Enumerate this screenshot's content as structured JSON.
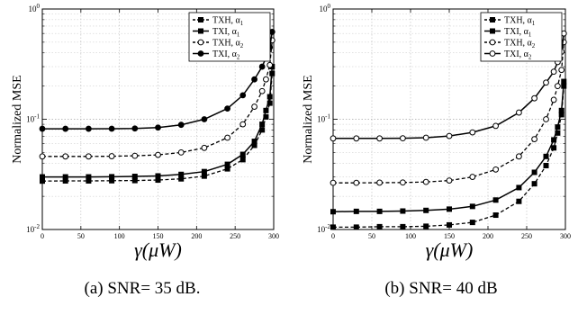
{
  "chart_data": [
    {
      "type": "line",
      "panel_id": "a",
      "caption": "(a) SNR= 35 dB.",
      "xlabel": "γ(μW)",
      "ylabel": "Normalized MSE",
      "y_scale": "log",
      "xlim": [
        0,
        300
      ],
      "ylim": [
        0.01,
        1
      ],
      "x_ticks": [
        "0",
        "50",
        "100",
        "150",
        "200",
        "250",
        "300"
      ],
      "y_ticks": [
        "10-2",
        "10-1",
        "100"
      ],
      "grid": true,
      "legend_position": "top-right",
      "x": [
        0,
        30,
        60,
        90,
        120,
        150,
        180,
        210,
        240,
        260,
        275,
        285,
        290,
        295,
        298
      ],
      "series": [
        {
          "name": "TXH, α1",
          "line_style": "dashed",
          "marker": "square-filled",
          "values": [
            0.0275,
            0.0276,
            0.0276,
            0.0277,
            0.0278,
            0.0281,
            0.0288,
            0.0305,
            0.0355,
            0.043,
            0.058,
            0.08,
            0.105,
            0.14,
            0.26
          ]
        },
        {
          "name": "TXI, α1",
          "line_style": "solid",
          "marker": "square-filled",
          "values": [
            0.03,
            0.03,
            0.03,
            0.0301,
            0.0303,
            0.0306,
            0.0316,
            0.0335,
            0.039,
            0.048,
            0.063,
            0.09,
            0.12,
            0.16,
            0.3
          ]
        },
        {
          "name": "TXH, α2",
          "line_style": "dashed",
          "marker": "circle-open",
          "values": [
            0.046,
            0.046,
            0.046,
            0.0462,
            0.0466,
            0.0475,
            0.05,
            0.055,
            0.068,
            0.09,
            0.13,
            0.18,
            0.23,
            0.31,
            0.52
          ]
        },
        {
          "name": "TXI, α2",
          "line_style": "solid",
          "marker": "circle-filled",
          "values": [
            0.082,
            0.082,
            0.082,
            0.0821,
            0.0825,
            0.084,
            0.089,
            0.1,
            0.125,
            0.165,
            0.23,
            0.3,
            0.36,
            0.45,
            0.62
          ]
        }
      ]
    },
    {
      "type": "line",
      "panel_id": "b",
      "caption": "(b) SNR= 40 dB",
      "xlabel": "γ(μW)",
      "ylabel": "Normalized MSE",
      "y_scale": "log",
      "xlim": [
        0,
        300
      ],
      "ylim": [
        0.01,
        1
      ],
      "x_ticks": [
        "0",
        "50",
        "100",
        "150",
        "200",
        "250",
        "300"
      ],
      "y_ticks": [
        "10-2",
        "10-1",
        "100"
      ],
      "grid": true,
      "legend_position": "top-right",
      "x": [
        0,
        30,
        60,
        90,
        120,
        150,
        180,
        210,
        240,
        260,
        275,
        285,
        290,
        295,
        298
      ],
      "series": [
        {
          "name": "TXH, α1",
          "line_style": "dashed",
          "marker": "square-filled",
          "values": [
            0.0105,
            0.0105,
            0.0106,
            0.0106,
            0.0107,
            0.011,
            0.0116,
            0.0135,
            0.018,
            0.026,
            0.038,
            0.055,
            0.075,
            0.11,
            0.2
          ]
        },
        {
          "name": "TXI, α1",
          "line_style": "solid",
          "marker": "square-filled",
          "values": [
            0.0145,
            0.0146,
            0.0146,
            0.0147,
            0.0149,
            0.0153,
            0.0162,
            0.0185,
            0.024,
            0.033,
            0.046,
            0.065,
            0.085,
            0.12,
            0.22
          ]
        },
        {
          "name": "TXH, α2",
          "line_style": "dashed",
          "marker": "circle-open",
          "values": [
            0.0265,
            0.0265,
            0.0266,
            0.0267,
            0.027,
            0.0278,
            0.03,
            0.035,
            0.046,
            0.066,
            0.1,
            0.15,
            0.2,
            0.28,
            0.5
          ]
        },
        {
          "name": "TXI, α2",
          "line_style": "solid",
          "marker": "circle-open",
          "values": [
            0.067,
            0.067,
            0.067,
            0.0672,
            0.068,
            0.0705,
            0.076,
            0.087,
            0.115,
            0.155,
            0.215,
            0.27,
            0.33,
            0.41,
            0.6
          ]
        }
      ]
    }
  ]
}
